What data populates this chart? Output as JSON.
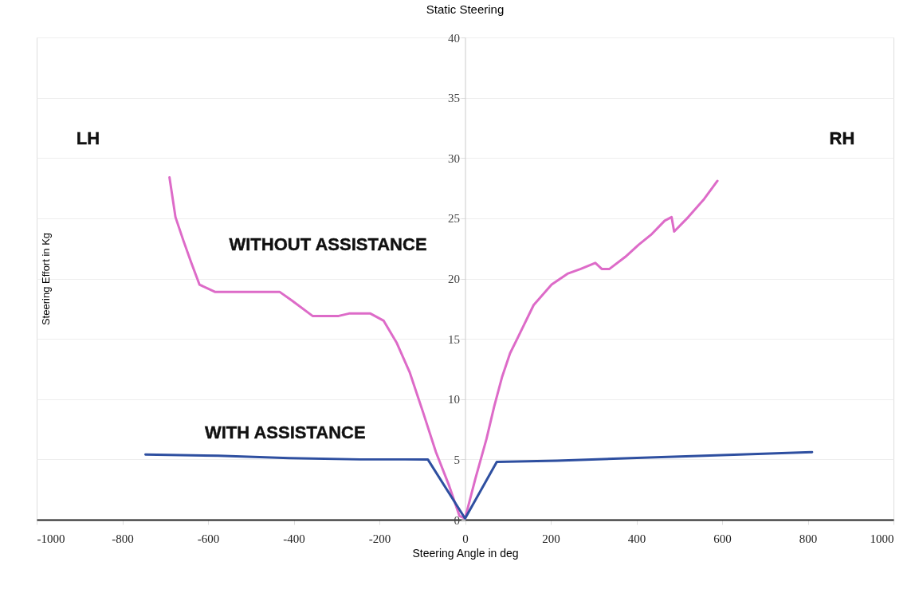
{
  "chart_data": {
    "type": "line",
    "title": "Static Steering",
    "xlabel": "Steering Angle in deg",
    "ylabel": "Steering Effort in Kg",
    "xlim": [
      -1000,
      1000
    ],
    "xticks": [
      -1000,
      -800,
      -600,
      -400,
      -200,
      0,
      200,
      400,
      600,
      800,
      1000
    ],
    "ylim": [
      0,
      40
    ],
    "yticks": [
      0,
      5,
      10,
      15,
      20,
      25,
      30,
      35,
      40
    ],
    "grid": "y",
    "line_style": "solid",
    "marker": "none",
    "series": [
      {
        "color": "#dd6bc8",
        "x": [
          -690,
          -676,
          -657,
          -639,
          -620,
          -584,
          -433,
          -405,
          -356,
          -295,
          -271,
          -221,
          -190,
          -160,
          -129,
          -98,
          -68,
          -37,
          -13,
          0,
          24,
          50,
          68,
          86,
          105,
          123,
          160,
          202,
          239,
          270,
          304,
          319,
          337,
          374,
          405,
          436,
          466,
          482,
          488,
          521,
          558,
          589
        ],
        "values": [
          28.4,
          25.1,
          23.1,
          21.3,
          19.5,
          18.9,
          18.9,
          18.2,
          16.9,
          16.9,
          17.1,
          17.1,
          16.5,
          14.7,
          12.2,
          8.9,
          5.6,
          2.8,
          0.3,
          0.1,
          3.4,
          6.7,
          9.4,
          11.8,
          13.8,
          15.1,
          17.8,
          19.5,
          20.4,
          20.8,
          21.3,
          20.8,
          20.8,
          21.8,
          22.8,
          23.7,
          24.8,
          25.1,
          23.9,
          25.1,
          26.6,
          28.1
        ]
      },
      {
        "color": "#2e4fa0",
        "x": [
          -746,
          -576,
          -411,
          -245,
          -87,
          0,
          74,
          215,
          387,
          558,
          810
        ],
        "values": [
          5.4,
          5.3,
          5.1,
          5.0,
          5.0,
          0.1,
          4.8,
          4.9,
          5.1,
          5.3,
          5.6
        ]
      }
    ],
    "annotations": [
      "LH",
      "RH",
      "WITHOUT ASSISTANCE",
      "WITH ASSISTANCE"
    ]
  }
}
